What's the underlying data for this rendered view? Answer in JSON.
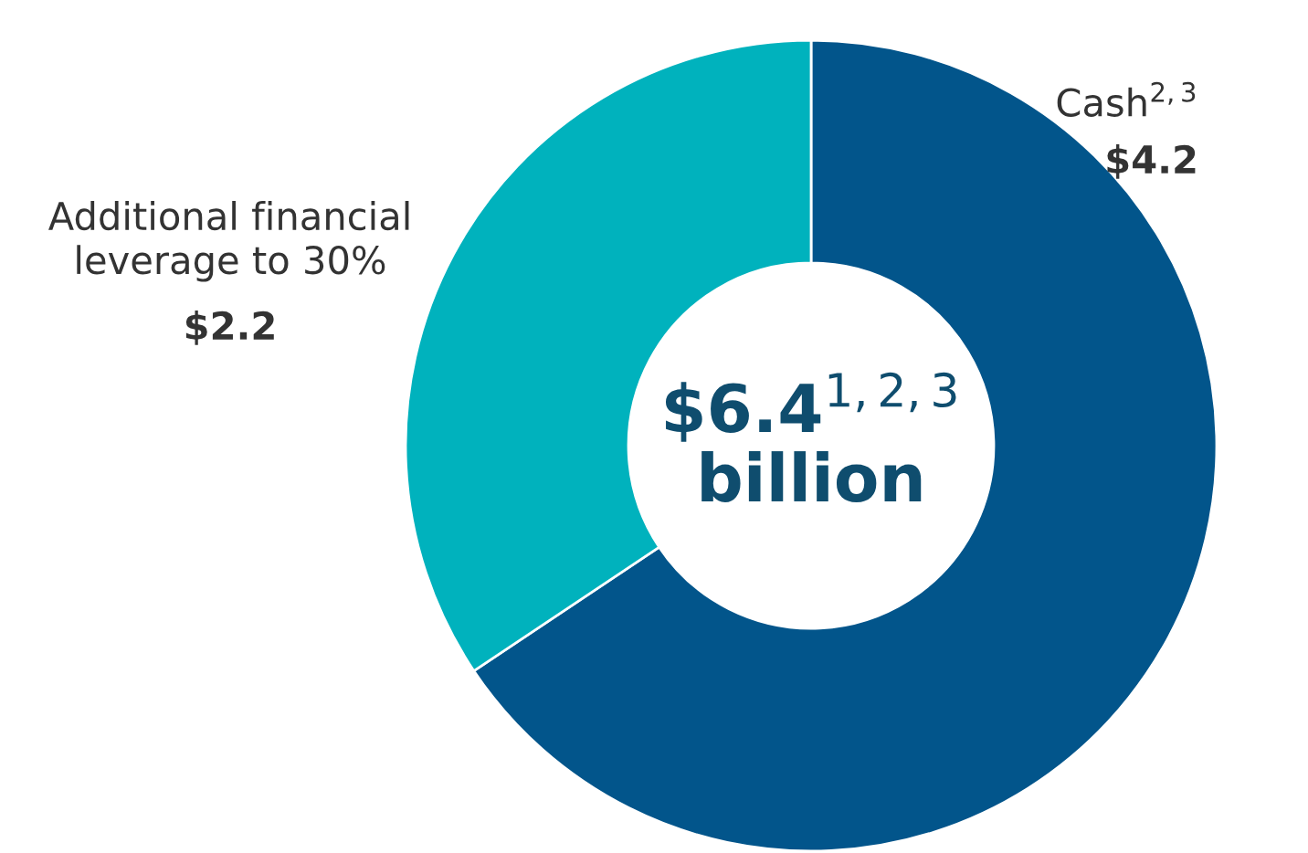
{
  "chart_data": {
    "type": "donut",
    "title": "$6.4$^{1,2,3}$\nbillion",
    "categories": [
      "Cash$^{2,3}$",
      "Additional financial\nleverage to 30%"
    ],
    "values": [
      4.2,
      2.2
    ],
    "value_labels": [
      "$4.2",
      "$2.2"
    ],
    "colors": [
      "#02558b",
      "#00b2bd"
    ],
    "legend": false
  }
}
